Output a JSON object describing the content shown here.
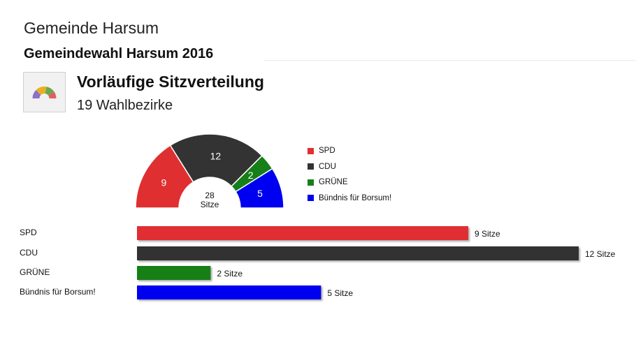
{
  "header": {
    "municipality": "Gemeinde Harsum",
    "election_title": "Gemeindewahl Harsum 2016",
    "subtitle": "Vorläufige Sitzverteilung",
    "subsubtitle": "19 Wahlbezirke"
  },
  "icons": {
    "chart": "parliament-chart-icon"
  },
  "chart_data": [
    {
      "type": "pie",
      "variant": "semicircle-donut",
      "categories": [
        "SPD",
        "CDU",
        "GRÜNE",
        "Bündnis für Borsum!"
      ],
      "values": [
        9,
        12,
        2,
        5
      ],
      "colors": [
        "#e02f31",
        "#333333",
        "#177f19",
        "#0000f0"
      ],
      "center_value": "28",
      "center_label": "Sitze",
      "legend": "right"
    },
    {
      "type": "bar",
      "orientation": "horizontal",
      "categories": [
        "SPD",
        "CDU",
        "GRÜNE",
        "Bündnis für Borsum!"
      ],
      "values": [
        9,
        12,
        2,
        5
      ],
      "value_labels": [
        "9 Sitze",
        "12 Sitze",
        "2 Sitze",
        "5 Sitze"
      ],
      "colors": [
        "#e02f31",
        "#333333",
        "#177f19",
        "#0000f0"
      ],
      "xlim": [
        0,
        12
      ]
    }
  ]
}
